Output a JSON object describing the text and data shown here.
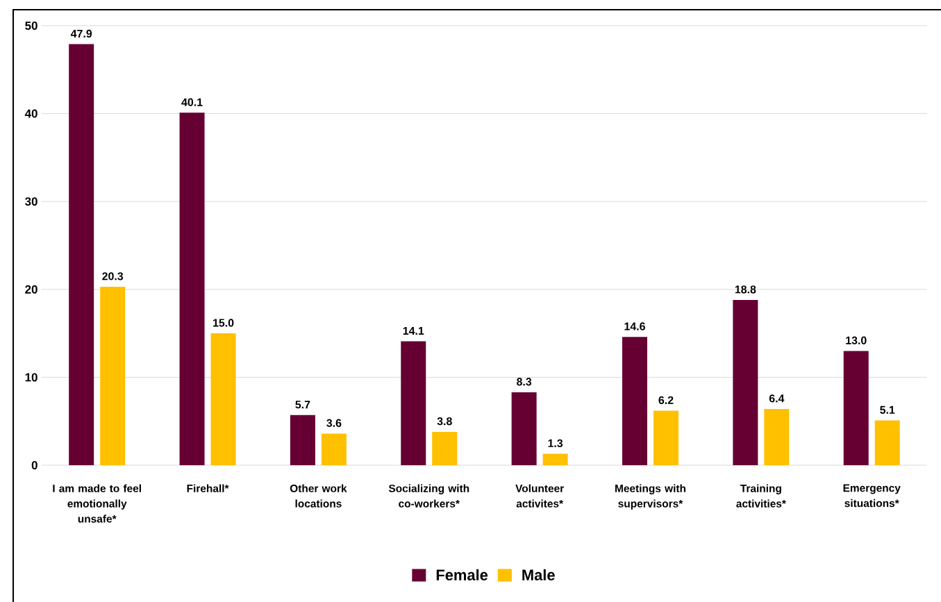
{
  "chart_data": {
    "type": "bar",
    "categories": [
      "I am made to feel emotionally unsafe*",
      "Firehall*",
      "Other work locations",
      "Socializing with co-workers*",
      "Volunteer activites*",
      "Meetings with supervisors*",
      "Training activities*",
      "Emergency situations*"
    ],
    "series": [
      {
        "name": "Female",
        "color": "#660033",
        "values": [
          47.9,
          40.1,
          5.7,
          14.1,
          8.3,
          14.6,
          18.8,
          13.0
        ],
        "value_labels": [
          "47.9",
          "40.1",
          "5.7",
          "14.1",
          "8.3",
          "14.6",
          "18.8",
          "13.0"
        ]
      },
      {
        "name": "Male",
        "color": "#ffc000",
        "values": [
          20.3,
          15.0,
          3.6,
          3.8,
          1.3,
          6.2,
          6.4,
          5.1
        ],
        "value_labels": [
          "20.3",
          "15.0",
          "3.6",
          "3.8",
          "1.3",
          "6.2",
          "6.4",
          "5.1"
        ]
      }
    ],
    "ylim": [
      0,
      50
    ],
    "yticks": [
      0,
      10,
      20,
      30,
      40,
      50
    ],
    "grid": "y",
    "legend": "bottom",
    "data_labels": true
  }
}
